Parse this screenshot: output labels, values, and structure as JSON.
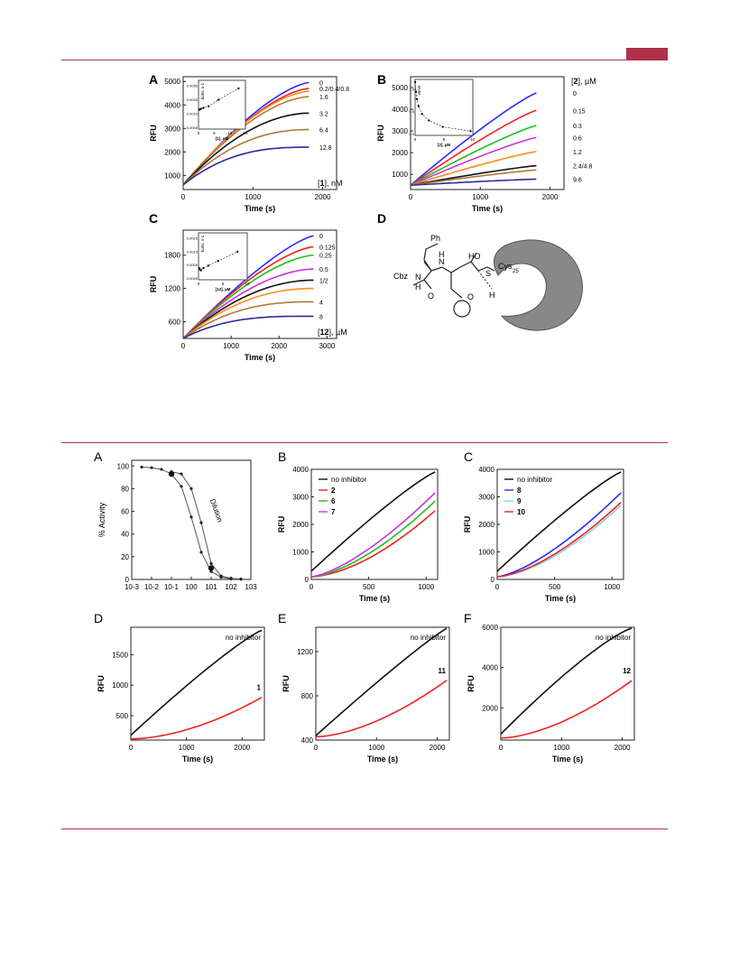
{
  "colors": {
    "rule": "#b0304a",
    "blue": "#2b2bff",
    "red": "#ee2222",
    "green": "#22bb22",
    "magenta": "#cc33dd",
    "orange": "#ff8c1a",
    "black": "#111111",
    "brown": "#b07a3c",
    "navy": "#2a2a9a",
    "gray_protein": "#888888"
  },
  "labels": {
    "f1": {
      "A": "A",
      "B": "B",
      "C": "C",
      "D": "D"
    },
    "f2": {
      "A": "A",
      "B": "B",
      "C": "C",
      "D": "D",
      "E": "E",
      "F": "F"
    }
  },
  "structure": {
    "ph": "Ph",
    "cbz": "Cbz",
    "nh_n": "N",
    "nh_h": "H",
    "o": "O",
    "n2": "N",
    "h2": "H",
    "ho": "HO",
    "s": "S",
    "cys": "Cys",
    "cys_sub": "25",
    "o2": "O",
    "h3": "H"
  },
  "chart_data": [
    {
      "id": "fig1A",
      "type": "line",
      "xlabel": "Time (s)",
      "ylabel": "RFU",
      "xlim": [
        0,
        2200
      ],
      "ylim": [
        400,
        5200
      ],
      "xticks": [
        0,
        1000,
        2000
      ],
      "yticks": [
        1000,
        2000,
        3000,
        4000,
        5000
      ],
      "legend_title_bold": "1",
      "legend_title_pre": "[",
      "legend_title_post": "], nM",
      "series": [
        {
          "name": "0",
          "color": "#2b2bff",
          "start": 600,
          "end": 4950,
          "curv": 0.15
        },
        {
          "name": "0.2/0.4/0.8",
          "color": "#ee2222",
          "start": 600,
          "end": 4700,
          "curv": 0.18
        },
        {
          "name": "",
          "color": "#ff8c1a",
          "start": 600,
          "end": 4580,
          "curv": 0.2
        },
        {
          "name": "1.6",
          "color": "#b07a3c",
          "start": 600,
          "end": 4350,
          "curv": 0.22
        },
        {
          "name": "3.2",
          "color": "#111111",
          "start": 600,
          "end": 3650,
          "curv": 0.3
        },
        {
          "name": "6.4",
          "color": "#b07a3c",
          "start": 600,
          "end": 2950,
          "curv": 0.4
        },
        {
          "name": "12.8",
          "color": "#2a2a9a",
          "start": 600,
          "end": 2200,
          "curv": 0.55
        }
      ],
      "inset": {
        "xlabel": "[1], nM",
        "ylabel": "kobs, s-1",
        "xlim": [
          0,
          15
        ],
        "ylim": [
          0,
          0.003
        ],
        "xticks": [
          0,
          5,
          10,
          15
        ],
        "yticks": [
          "0.0000",
          "0.0010",
          "0.0020",
          "0.0030"
        ],
        "points": [
          [
            0.2,
            0.0012
          ],
          [
            0.4,
            0.0012
          ],
          [
            0.8,
            0.00125
          ],
          [
            1.6,
            0.0013
          ],
          [
            3.2,
            0.0014
          ],
          [
            6.4,
            0.0018
          ],
          [
            12.8,
            0.0025
          ]
        ]
      }
    },
    {
      "id": "fig1B",
      "type": "line",
      "xlabel": "Time (s)",
      "ylabel": "RFU",
      "xlim": [
        0,
        2200
      ],
      "ylim": [
        300,
        5500
      ],
      "xticks": [
        0,
        1000,
        2000
      ],
      "yticks": [
        1000,
        2000,
        3000,
        4000,
        5000
      ],
      "legend_title_bold": "2",
      "legend_title_pre": "[",
      "legend_title_post": "], µM",
      "series": [
        {
          "name": "0",
          "color": "#2b2bff",
          "start": 500,
          "end": 4750,
          "curv": 0.05
        },
        {
          "name": "0.15",
          "color": "#ee2222",
          "start": 500,
          "end": 3950,
          "curv": 0.05
        },
        {
          "name": "0.3",
          "color": "#22bb22",
          "start": 500,
          "end": 3250,
          "curv": 0.05
        },
        {
          "name": "0.6",
          "color": "#cc33dd",
          "start": 500,
          "end": 2700,
          "curv": 0.05
        },
        {
          "name": "1.2",
          "color": "#ff8c1a",
          "start": 500,
          "end": 2050,
          "curv": 0.05
        },
        {
          "name": "2.4/4.8",
          "color": "#111111",
          "start": 500,
          "end": 1400,
          "curv": 0.05
        },
        {
          "name": "",
          "color": "#b07a3c",
          "start": 500,
          "end": 1200,
          "curv": 0.05
        },
        {
          "name": "9.6",
          "color": "#2a2a9a",
          "start": 500,
          "end": 780,
          "curv": 0.05
        }
      ],
      "inset": {
        "xlabel": "[2], µM",
        "ylabel": "v0/v0",
        "xlim": [
          0,
          10
        ],
        "ylim": [
          0,
          1.05
        ],
        "xticks": [
          0,
          5,
          10
        ],
        "yticks": [
          "0.0",
          "0.5",
          "1.0"
        ],
        "points": [
          [
            0,
            1.0
          ],
          [
            0.15,
            0.82
          ],
          [
            0.3,
            0.68
          ],
          [
            0.6,
            0.55
          ],
          [
            1.2,
            0.4
          ],
          [
            2.4,
            0.28
          ],
          [
            4.8,
            0.16
          ],
          [
            9.6,
            0.08
          ]
        ]
      }
    },
    {
      "id": "fig1C",
      "type": "line",
      "xlabel": "Time (s)",
      "ylabel": "RFU",
      "xlim": [
        0,
        3200
      ],
      "ylim": [
        300,
        2250
      ],
      "xticks": [
        0,
        1000,
        2000,
        3000
      ],
      "yticks": [
        600,
        1200,
        1800
      ],
      "legend_title_bold": "12",
      "legend_title_pre": "[",
      "legend_title_post": "], µM",
      "series": [
        {
          "name": "0",
          "color": "#2b2bff",
          "start": 300,
          "end": 2150,
          "curv": 0.1
        },
        {
          "name": "0.125",
          "color": "#ee2222",
          "start": 300,
          "end": 1950,
          "curv": 0.15
        },
        {
          "name": "0.25",
          "color": "#22bb22",
          "start": 300,
          "end": 1800,
          "curv": 0.18
        },
        {
          "name": "0.5",
          "color": "#cc33dd",
          "start": 300,
          "end": 1550,
          "curv": 0.25
        },
        {
          "name": "1/2",
          "color": "#111111",
          "start": 300,
          "end": 1350,
          "curv": 0.32
        },
        {
          "name": "",
          "color": "#ff8c1a",
          "start": 300,
          "end": 1200,
          "curv": 0.38
        },
        {
          "name": "4",
          "color": "#b07a3c",
          "start": 300,
          "end": 960,
          "curv": 0.5
        },
        {
          "name": "8",
          "color": "#2a2a9a",
          "start": 300,
          "end": 700,
          "curv": 0.7
        }
      ],
      "inset": {
        "xlabel": "[12], µM",
        "ylabel": "kobs, s-1",
        "xlim": [
          0,
          10
        ],
        "ylim": [
          0,
          0.002
        ],
        "xticks": [
          0,
          5,
          10
        ],
        "yticks": [
          "0.0000",
          "0.0005",
          "0.0010",
          "0.0015"
        ],
        "points": [
          [
            0.125,
            0.0005
          ],
          [
            0.25,
            0.00045
          ],
          [
            0.5,
            0.0004
          ],
          [
            1,
            0.0005
          ],
          [
            2,
            0.0006
          ],
          [
            4,
            0.0008
          ],
          [
            8,
            0.0012
          ]
        ]
      }
    },
    {
      "id": "fig2A",
      "type": "line",
      "xlabel": "",
      "ylabel": "% Activity",
      "xlim_log": [
        -3,
        3
      ],
      "ylim": [
        0,
        105
      ],
      "xticks": [
        "10-3",
        "10-2",
        "10-1",
        "100",
        "101",
        "102",
        "103"
      ],
      "yticks": [
        0,
        20,
        40,
        60,
        80,
        100
      ],
      "annotation": "Dilution",
      "series": [
        {
          "name": "",
          "color": "#555555",
          "points": [
            [
              -2.5,
              99
            ],
            [
              -2,
              98.5
            ],
            [
              -1.5,
              97
            ],
            [
              -1,
              93
            ],
            [
              -0.5,
              82
            ],
            [
              0,
              55
            ],
            [
              0.5,
              24
            ],
            [
              1,
              7
            ],
            [
              1.5,
              2
            ],
            [
              2,
              0.5
            ],
            [
              2.5,
              0.2
            ]
          ]
        },
        {
          "name": "",
          "color": "#555555",
          "points": [
            [
              -1,
              95
            ],
            [
              -0.5,
              93
            ],
            [
              0,
              80
            ],
            [
              0.5,
              50
            ],
            [
              1,
              14
            ],
            [
              1.5,
              3
            ],
            [
              2,
              1
            ],
            [
              2.5,
              0.3
            ]
          ]
        }
      ],
      "big_points": [
        [
          -1,
          93
        ],
        [
          1,
          10
        ]
      ]
    },
    {
      "id": "fig2B",
      "type": "line",
      "xlabel": "Time (s)",
      "ylabel": "RFU",
      "xlim": [
        0,
        1100
      ],
      "ylim": [
        0,
        4000
      ],
      "xticks": [
        0,
        500,
        1000
      ],
      "yticks": [
        0,
        1000,
        2000,
        3000,
        4000
      ],
      "series": [
        {
          "name": "no inhibitor",
          "color": "#111111",
          "start": 300,
          "end": 3900,
          "curv": 0.05
        },
        {
          "name": "2",
          "color": "#ee2222",
          "start": 100,
          "end": 2500,
          "curv": -0.3
        },
        {
          "name": "6",
          "color": "#22bb22",
          "start": 100,
          "end": 2850,
          "curv": -0.25
        },
        {
          "name": "7",
          "color": "#cc33dd",
          "start": 100,
          "end": 3150,
          "curv": -0.2
        }
      ]
    },
    {
      "id": "fig2C",
      "type": "line",
      "xlabel": "Time (s)",
      "ylabel": "RFU",
      "xlim": [
        0,
        1100
      ],
      "ylim": [
        0,
        4000
      ],
      "xticks": [
        0,
        500,
        1000
      ],
      "yticks": [
        0,
        1000,
        2000,
        3000,
        4000
      ],
      "series": [
        {
          "name": "no inhibitor",
          "color": "#111111",
          "start": 300,
          "end": 3900,
          "curv": 0.05
        },
        {
          "name": "8",
          "color": "#2b2bff",
          "start": 100,
          "end": 3150,
          "curv": -0.2
        },
        {
          "name": "9",
          "color": "#7fd4e6",
          "start": 100,
          "end": 2700,
          "curv": -0.28
        },
        {
          "name": "10",
          "color": "#ee2222",
          "start": 100,
          "end": 2800,
          "curv": -0.25
        }
      ]
    },
    {
      "id": "fig2D",
      "type": "line",
      "xlabel": "Time (s)",
      "ylabel": "RFU",
      "xlim": [
        0,
        2400
      ],
      "ylim": [
        100,
        1950
      ],
      "xticks": [
        0,
        1000,
        2000
      ],
      "yticks": [
        500,
        1000,
        1500
      ],
      "series": [
        {
          "name": "no inhibitor",
          "color": "#111111",
          "start": 180,
          "end": 1900,
          "curv": 0.05
        },
        {
          "name": "1",
          "color": "#ee2222",
          "start": 120,
          "end": 800,
          "curv": -0.35
        }
      ]
    },
    {
      "id": "fig2E",
      "type": "line",
      "xlabel": "Time (s)",
      "ylabel": "RFU",
      "xlim": [
        0,
        2200
      ],
      "ylim": [
        400,
        1420
      ],
      "xticks": [
        0,
        1000,
        2000
      ],
      "yticks": [
        400,
        800,
        1200
      ],
      "series": [
        {
          "name": "no inhibitor",
          "color": "#111111",
          "start": 440,
          "end": 1410,
          "curv": 0.03
        },
        {
          "name": "11",
          "color": "#ee2222",
          "start": 430,
          "end": 940,
          "curv": -0.3
        }
      ]
    },
    {
      "id": "fig2F",
      "type": "line",
      "xlabel": "Time (s)",
      "ylabel": "RFU",
      "xlim": [
        0,
        2200
      ],
      "ylim": [
        400,
        6000
      ],
      "xticks": [
        0,
        1000,
        2000
      ],
      "yticks": [
        2000,
        4000,
        6000
      ],
      "series": [
        {
          "name": "no inhibitor",
          "color": "#111111",
          "start": 700,
          "end": 5950,
          "curv": 0.08
        },
        {
          "name": "12",
          "color": "#ee2222",
          "start": 500,
          "end": 3350,
          "curv": -0.3
        }
      ]
    }
  ]
}
